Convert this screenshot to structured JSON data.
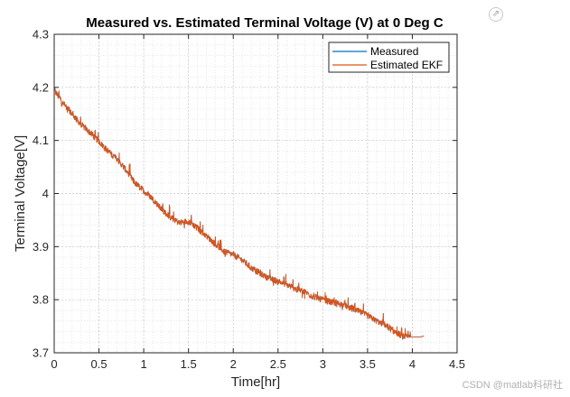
{
  "chart_data": {
    "type": "line",
    "title": "Measured vs. Estimated Terminal Voltage (V) at 0 Deg C",
    "xlabel": "Time[hr]",
    "ylabel": "Terminal Voltage[V]",
    "xlim": [
      0,
      4.5
    ],
    "ylim": [
      3.7,
      4.3
    ],
    "xticks": [
      0,
      0.5,
      1,
      1.5,
      2,
      2.5,
      3,
      3.5,
      4,
      4.5
    ],
    "xtick_labels": [
      "0",
      "0.5",
      "1",
      "1.5",
      "2",
      "2.5",
      "3",
      "3.5",
      "4",
      "4.5"
    ],
    "yticks": [
      3.7,
      3.8,
      3.9,
      4.0,
      4.1,
      4.2,
      4.3
    ],
    "ytick_labels": [
      "3.7",
      "3.8",
      "3.9",
      "4",
      "4.1",
      "4.2",
      "4.3"
    ],
    "grid": true,
    "minor_grid": true,
    "legend_position": "top-right",
    "series": [
      {
        "name": "Measured",
        "color": "#0072BD",
        "x": [
          0,
          0.1,
          0.2,
          0.3,
          0.4,
          0.5,
          0.6,
          0.7,
          0.8,
          0.9,
          1.0,
          1.1,
          1.2,
          1.3,
          1.4,
          1.5,
          1.6,
          1.7,
          1.8,
          1.9,
          2.0,
          2.1,
          2.2,
          2.3,
          2.4,
          2.5,
          2.6,
          2.7,
          2.8,
          2.9,
          3.0,
          3.1,
          3.2,
          3.3,
          3.4,
          3.5,
          3.6,
          3.7,
          3.8,
          3.9,
          4.0,
          4.1,
          4.13
        ],
        "y": [
          4.195,
          4.17,
          4.15,
          4.13,
          4.115,
          4.098,
          4.08,
          4.065,
          4.045,
          4.02,
          4.005,
          3.99,
          3.97,
          3.955,
          3.945,
          3.948,
          3.935,
          3.92,
          3.905,
          3.89,
          3.885,
          3.875,
          3.86,
          3.85,
          3.84,
          3.835,
          3.828,
          3.82,
          3.815,
          3.805,
          3.8,
          3.795,
          3.792,
          3.785,
          3.778,
          3.77,
          3.76,
          3.752,
          3.74,
          3.73,
          3.73,
          3.73,
          3.732
        ]
      },
      {
        "name": "Estimated EKF",
        "color": "#D95319",
        "x": [
          0,
          0.1,
          0.2,
          0.3,
          0.4,
          0.5,
          0.6,
          0.7,
          0.8,
          0.9,
          1.0,
          1.1,
          1.2,
          1.3,
          1.4,
          1.5,
          1.6,
          1.7,
          1.8,
          1.9,
          2.0,
          2.1,
          2.2,
          2.3,
          2.4,
          2.5,
          2.6,
          2.7,
          2.8,
          2.9,
          3.0,
          3.1,
          3.2,
          3.3,
          3.4,
          3.5,
          3.6,
          3.7,
          3.8,
          3.9,
          4.0,
          4.1,
          4.13
        ],
        "y": [
          4.195,
          4.17,
          4.15,
          4.13,
          4.115,
          4.098,
          4.08,
          4.065,
          4.045,
          4.02,
          4.005,
          3.99,
          3.97,
          3.955,
          3.945,
          3.948,
          3.935,
          3.92,
          3.905,
          3.89,
          3.885,
          3.875,
          3.86,
          3.85,
          3.84,
          3.835,
          3.828,
          3.82,
          3.815,
          3.805,
          3.8,
          3.795,
          3.792,
          3.785,
          3.778,
          3.77,
          3.76,
          3.752,
          3.74,
          3.73,
          3.73,
          3.73,
          3.732
        ]
      }
    ]
  },
  "watermark": "CSDN @matlab科研社",
  "export_icon": "export-arrow-icon"
}
